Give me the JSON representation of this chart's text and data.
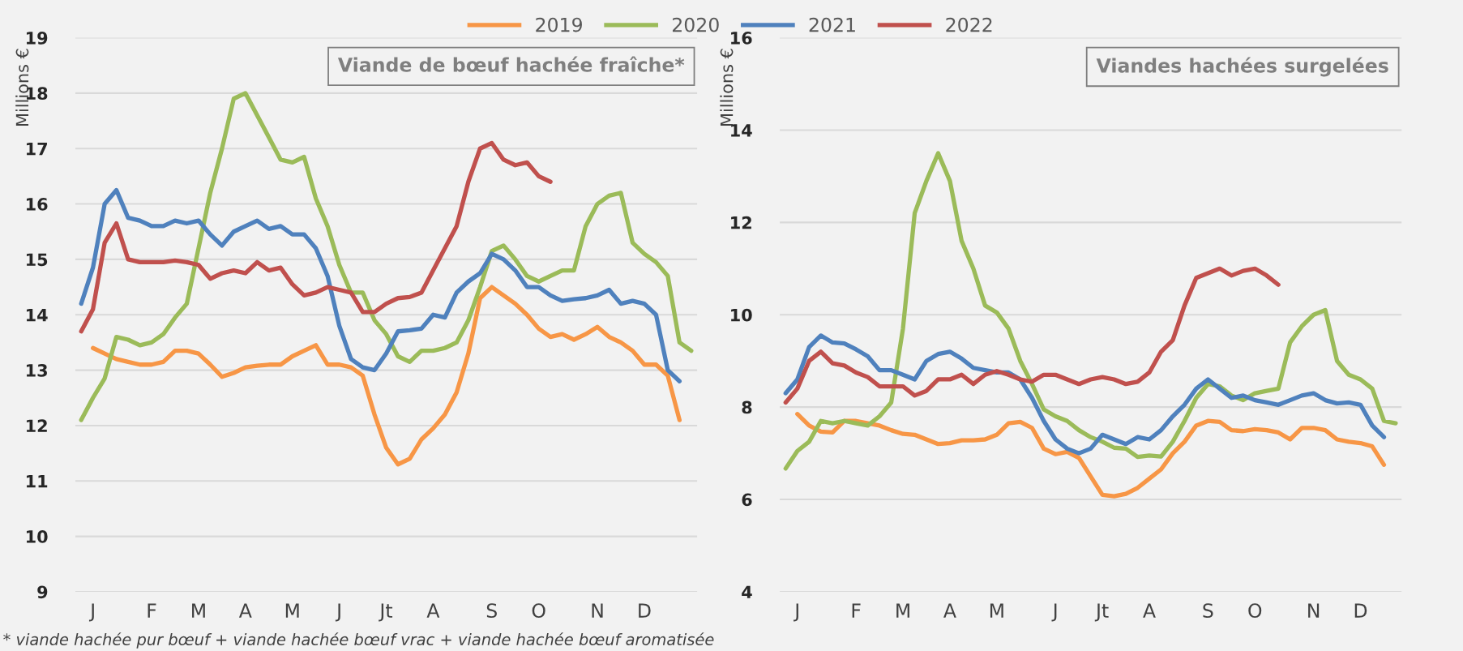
{
  "chart_data": [
    {
      "type": "line",
      "title": "Viande de bœuf hachée fraîche*",
      "ylabel": "Millions €",
      "legend": "top",
      "grid": "y",
      "ylim": [
        9,
        19
      ],
      "yticks": [
        9,
        10,
        11,
        12,
        13,
        14,
        15,
        16,
        17,
        18,
        19
      ],
      "categories": [
        null,
        "J",
        null,
        null,
        null,
        null,
        "F",
        null,
        null,
        null,
        "M",
        null,
        null,
        null,
        "A",
        null,
        null,
        null,
        "M",
        null,
        null,
        null,
        "J",
        null,
        null,
        null,
        "Jt",
        null,
        null,
        null,
        "A",
        null,
        null,
        null,
        null,
        "S",
        null,
        null,
        null,
        "O",
        null,
        null,
        null,
        null,
        "N",
        null,
        null,
        null,
        "D",
        null,
        null,
        null,
        null
      ],
      "annotations": [
        "* viande hachée pur bœuf + viande hachée bœuf vrac + viande hachée bœuf aromatisée"
      ],
      "series": [
        {
          "name": "2019",
          "color": "#f79646",
          "values": [
            null,
            13.4,
            13.3,
            13.2,
            13.15,
            13.1,
            13.1,
            13.15,
            13.35,
            13.35,
            13.3,
            13.1,
            12.88,
            12.95,
            13.05,
            13.08,
            13.1,
            13.1,
            13.25,
            13.35,
            13.45,
            13.1,
            13.1,
            13.05,
            12.9,
            12.2,
            11.6,
            11.3,
            11.4,
            11.75,
            11.95,
            12.2,
            12.6,
            13.3,
            14.3,
            14.5,
            14.35,
            14.2,
            14.0,
            13.75,
            13.6,
            13.65,
            13.55,
            13.65,
            13.78,
            13.6,
            13.5,
            13.35,
            13.1,
            13.1,
            12.9,
            12.1,
            null
          ]
        },
        {
          "name": "2020",
          "color": "#9bbb59",
          "values": [
            12.1,
            12.5,
            12.85,
            13.6,
            13.55,
            13.45,
            13.5,
            13.65,
            13.95,
            14.2,
            15.2,
            16.2,
            17.0,
            17.9,
            18.0,
            17.6,
            17.2,
            16.8,
            16.75,
            16.85,
            16.1,
            15.6,
            14.9,
            14.4,
            14.4,
            13.9,
            13.65,
            13.25,
            13.15,
            13.35,
            13.35,
            13.4,
            13.5,
            13.9,
            14.5,
            15.15,
            15.25,
            15.0,
            14.7,
            14.6,
            14.7,
            14.8,
            14.8,
            15.6,
            16.0,
            16.15,
            16.2,
            15.3,
            15.1,
            14.95,
            14.7,
            13.5,
            13.35
          ]
        },
        {
          "name": "2021",
          "color": "#4f81bd",
          "values": [
            14.2,
            14.85,
            16.0,
            16.25,
            15.75,
            15.7,
            15.6,
            15.6,
            15.7,
            15.65,
            15.7,
            15.45,
            15.25,
            15.5,
            15.6,
            15.7,
            15.55,
            15.6,
            15.45,
            15.45,
            15.2,
            14.7,
            13.8,
            13.2,
            13.05,
            13.0,
            13.3,
            13.7,
            13.72,
            13.75,
            14.0,
            13.95,
            14.4,
            14.6,
            14.75,
            15.1,
            15.0,
            14.8,
            14.5,
            14.5,
            14.35,
            14.25,
            14.28,
            14.3,
            14.35,
            14.45,
            14.2,
            14.25,
            14.2,
            14.0,
            13.0,
            12.8,
            null
          ]
        },
        {
          "name": "2022",
          "color": "#c0504d",
          "values": [
            13.7,
            14.1,
            15.3,
            15.65,
            15.0,
            14.95,
            14.95,
            14.95,
            14.98,
            14.95,
            14.9,
            14.65,
            14.75,
            14.8,
            14.75,
            14.95,
            14.8,
            14.85,
            14.55,
            14.35,
            14.4,
            14.5,
            14.45,
            14.4,
            14.05,
            14.05,
            14.2,
            14.3,
            14.32,
            14.4,
            14.8,
            15.2,
            15.6,
            16.4,
            17.0,
            17.1,
            16.8,
            16.7,
            16.75,
            16.5,
            16.4,
            null,
            null,
            null,
            null,
            null,
            null,
            null,
            null,
            null,
            null,
            null,
            null
          ]
        }
      ]
    },
    {
      "type": "line",
      "title": "Viandes hachées surgelées",
      "ylabel": "Millions €",
      "grid": "y",
      "ylim": [
        4,
        16
      ],
      "yticks": [
        4,
        6,
        8,
        10,
        12,
        14,
        16
      ],
      "categories": [
        null,
        "J",
        null,
        null,
        null,
        null,
        "F",
        null,
        null,
        null,
        "M",
        null,
        null,
        null,
        "A",
        null,
        null,
        null,
        "M",
        null,
        null,
        null,
        null,
        "J",
        null,
        null,
        null,
        "Jt",
        null,
        null,
        null,
        "A",
        null,
        null,
        null,
        null,
        "S",
        null,
        null,
        null,
        "O",
        null,
        null,
        null,
        null,
        "N",
        null,
        null,
        null,
        "D",
        null,
        null,
        null
      ],
      "series": [
        {
          "name": "2019",
          "color": "#f79646",
          "values": [
            null,
            7.85,
            7.6,
            7.47,
            7.45,
            7.7,
            7.7,
            7.65,
            7.6,
            7.5,
            7.42,
            7.4,
            7.3,
            7.2,
            7.22,
            7.28,
            7.28,
            7.3,
            7.4,
            7.65,
            7.68,
            7.55,
            7.1,
            6.98,
            7.03,
            6.9,
            6.5,
            6.1,
            6.07,
            6.12,
            6.25,
            6.45,
            6.65,
            7.0,
            7.25,
            7.6,
            7.7,
            7.68,
            7.5,
            7.48,
            7.52,
            7.5,
            7.45,
            7.3,
            7.55,
            7.55,
            7.5,
            7.3,
            7.25,
            7.22,
            7.15,
            6.75,
            null
          ]
        },
        {
          "name": "2020",
          "color": "#9bbb59",
          "values": [
            6.67,
            7.05,
            7.25,
            7.7,
            7.65,
            7.7,
            7.65,
            7.6,
            7.8,
            8.1,
            9.7,
            12.2,
            12.9,
            13.5,
            12.9,
            11.6,
            11.0,
            10.2,
            10.05,
            9.7,
            9.0,
            8.5,
            7.95,
            7.8,
            7.7,
            7.5,
            7.35,
            7.25,
            7.12,
            7.1,
            6.92,
            6.95,
            6.93,
            7.25,
            7.7,
            8.2,
            8.5,
            8.45,
            8.25,
            8.15,
            8.3,
            8.35,
            8.4,
            9.4,
            9.75,
            10.0,
            10.1,
            9.0,
            8.7,
            8.6,
            8.4,
            7.7,
            7.65
          ]
        },
        {
          "name": "2021",
          "color": "#4f81bd",
          "values": [
            8.3,
            8.6,
            9.3,
            9.55,
            9.4,
            9.38,
            9.25,
            9.1,
            8.8,
            8.8,
            8.7,
            8.6,
            9.0,
            9.15,
            9.2,
            9.05,
            8.85,
            8.8,
            8.75,
            8.75,
            8.6,
            8.2,
            7.7,
            7.3,
            7.1,
            7.0,
            7.1,
            7.4,
            7.3,
            7.2,
            7.35,
            7.3,
            7.5,
            7.8,
            8.05,
            8.4,
            8.6,
            8.4,
            8.2,
            8.25,
            8.15,
            8.1,
            8.05,
            8.15,
            8.25,
            8.3,
            8.15,
            8.08,
            8.1,
            8.05,
            7.6,
            7.35,
            null
          ]
        },
        {
          "name": "2022",
          "color": "#c0504d",
          "values": [
            8.1,
            8.4,
            9.0,
            9.2,
            8.95,
            8.9,
            8.75,
            8.65,
            8.45,
            8.45,
            8.45,
            8.25,
            8.35,
            8.6,
            8.6,
            8.7,
            8.5,
            8.7,
            8.78,
            8.7,
            8.6,
            8.55,
            8.7,
            8.7,
            8.6,
            8.5,
            8.6,
            8.65,
            8.6,
            8.5,
            8.55,
            8.75,
            9.2,
            9.45,
            10.2,
            10.8,
            10.9,
            11.0,
            10.85,
            10.95,
            11.0,
            10.85,
            10.65,
            null,
            null,
            null,
            null,
            null,
            null,
            null,
            null,
            null,
            null
          ]
        }
      ]
    }
  ]
}
